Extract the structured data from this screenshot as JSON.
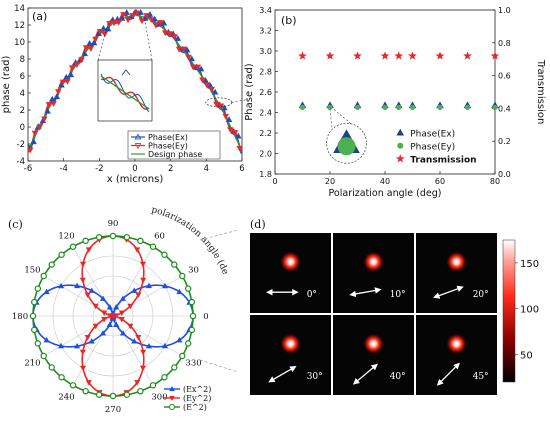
{
  "chart_data": [
    {
      "panel": "(a)",
      "type": "line",
      "xlabel": "x (microns)",
      "ylabel": "phase (rad)",
      "xlim": [
        -6,
        6
      ],
      "ylim": [
        -4,
        14
      ],
      "xticks": [
        "-6",
        "-4",
        "-2",
        "0",
        "2",
        "4",
        "6"
      ],
      "yticks": [
        "-4",
        "-2",
        "0",
        "2",
        "4",
        "6",
        "8",
        "10",
        "12",
        "14"
      ],
      "legend_position": "bottom-right",
      "x": [
        -6,
        -5,
        -4,
        -3,
        -2,
        -1,
        0,
        1,
        2,
        3,
        4,
        5,
        6
      ],
      "series": [
        {
          "name": "Phase(Ex)",
          "color": "#1f4fb5",
          "marker": "triangle-up",
          "values": [
            -2.8,
            1.6,
            5.2,
            8.2,
            10.9,
            12.6,
            13.2,
            12.6,
            10.9,
            8.2,
            5.2,
            1.6,
            -2.8
          ]
        },
        {
          "name": "Phase(Ey)",
          "color": "#e8282b",
          "marker": "triangle-down",
          "values": [
            -2.8,
            1.6,
            5.2,
            8.2,
            10.9,
            12.6,
            13.2,
            12.6,
            10.9,
            8.2,
            5.2,
            1.6,
            -2.8
          ]
        },
        {
          "name": "Design phase",
          "color": "#2e9c2e",
          "marker": "none",
          "values": [
            -2.8,
            1.6,
            5.2,
            8.2,
            10.9,
            12.6,
            13.2,
            12.6,
            10.9,
            8.2,
            5.2,
            1.6,
            -2.8
          ]
        }
      ]
    },
    {
      "panel": "(b)",
      "type": "scatter",
      "xlabel": "Polarization angle (deg)",
      "ylabel": "Phase (rad)",
      "ylabel_right": "Transmission",
      "xlim": [
        0,
        80
      ],
      "ylim": [
        1.8,
        3.4
      ],
      "ylim_right": [
        0,
        1.0
      ],
      "xticks": [
        "0",
        "20",
        "40",
        "60",
        "80"
      ],
      "yticks": [
        "1.8",
        "2.0",
        "2.2",
        "2.4",
        "2.6",
        "2.8",
        "3.0",
        "3.2",
        "3.4"
      ],
      "yticks_right": [
        "0.0",
        "0.2",
        "0.4",
        "0.6",
        "0.8",
        "1.0"
      ],
      "legend_position": "bottom-right",
      "x": [
        10,
        20,
        30,
        40,
        45,
        50,
        60,
        70,
        80
      ],
      "series": [
        {
          "name": "Phase(Ex)",
          "color": "#1f3f8f",
          "marker": "triangle-up",
          "axis": "left",
          "values": [
            2.46,
            2.46,
            2.46,
            2.46,
            2.46,
            2.46,
            2.46,
            2.46,
            2.46
          ]
        },
        {
          "name": "Phase(Ey)",
          "color": "#4caf50",
          "marker": "circle",
          "axis": "left",
          "values": [
            2.46,
            2.46,
            2.46,
            2.46,
            2.46,
            2.46,
            2.46,
            2.46,
            2.46
          ]
        },
        {
          "name": "Transmission",
          "color": "#e8282b",
          "marker": "star",
          "axis": "right",
          "values": [
            0.72,
            0.72,
            0.72,
            0.72,
            0.72,
            0.72,
            0.72,
            0.72,
            0.72
          ]
        }
      ]
    },
    {
      "panel": "(c)",
      "type": "polar",
      "annotation": "polarization angle (deg)",
      "angle_ticks": [
        "0",
        "30",
        "60",
        "90",
        "120",
        "150",
        "180",
        "210",
        "240",
        "270",
        "300",
        "330"
      ],
      "legend_position": "bottom-right",
      "series": [
        {
          "name": "(Ex^2)",
          "color": "#1f4fe0",
          "marker": "triangle-up",
          "function": "cos^2"
        },
        {
          "name": "(Ey^2)",
          "color": "#e8282b",
          "marker": "triangle-down",
          "function": "sin^2"
        },
        {
          "name": "(E^2)",
          "color": "#1e8c1e",
          "marker": "circle",
          "function": "constant"
        }
      ]
    },
    {
      "panel": "(d)",
      "type": "heatmap",
      "tiles": [
        {
          "label": "0°",
          "angle": 0
        },
        {
          "label": "10°",
          "angle": 10
        },
        {
          "label": "20°",
          "angle": 20
        },
        {
          "label": "30°",
          "angle": 30
        },
        {
          "label": "40°",
          "angle": 40
        },
        {
          "label": "45°",
          "angle": 45
        }
      ],
      "colorbar_ticks": [
        "50",
        "100",
        "150"
      ],
      "colorbar_range": [
        20,
        175
      ]
    }
  ]
}
